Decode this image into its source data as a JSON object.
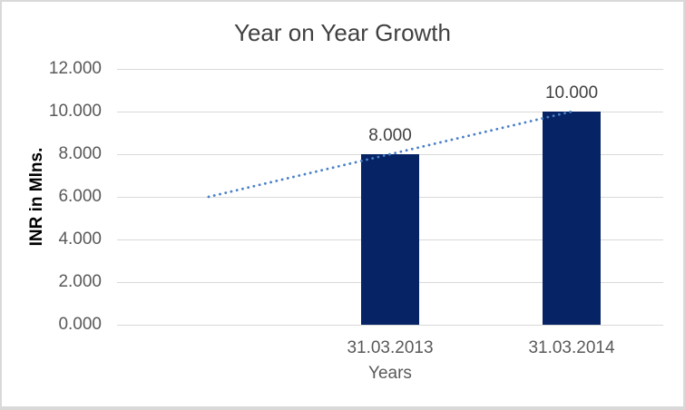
{
  "window": {
    "background_color": "#ffffff",
    "frame_border_color": "#d9d9d9"
  },
  "chart_data": {
    "type": "bar",
    "title": "Year on Year Growth",
    "xlabel": "Years",
    "ylabel": "INR in Mlns.",
    "categories": [
      "31.03.2013",
      "31.03.2014"
    ],
    "series": [
      {
        "name": "INR in Mlns.",
        "values": [
          8.0,
          10.0
        ]
      }
    ],
    "data_labels": [
      "8.000",
      "10.000"
    ],
    "yticks": [
      {
        "v": 0,
        "label": "0.000"
      },
      {
        "v": 2,
        "label": "2.000"
      },
      {
        "v": 4,
        "label": "4.000"
      },
      {
        "v": 6,
        "label": "6.000"
      },
      {
        "v": 8,
        "label": "8.000"
      },
      {
        "v": 10,
        "label": "10.000"
      },
      {
        "v": 12,
        "label": "12.000"
      }
    ],
    "ylim": [
      0,
      12
    ],
    "grid": true,
    "legend": false,
    "trendline": {
      "style": "dotted",
      "color": "#4a80c9",
      "points": [
        {
          "cat": 0,
          "v": 6.0
        },
        {
          "cat": 2,
          "v": 10.0
        }
      ]
    },
    "colors": {
      "bar": "#062365",
      "gridline": "#d9d9d9",
      "title_text": "#404040",
      "tick_text": "#595959",
      "axis_title_text": "#000000",
      "data_label_text": "#404040"
    }
  }
}
